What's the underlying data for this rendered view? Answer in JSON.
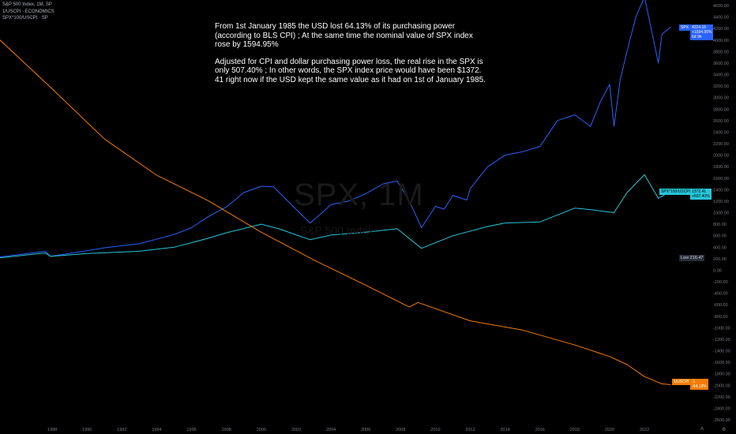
{
  "legend": {
    "line1": "S&P 500 Index, 1M, SP",
    "line2": "1/USCPI · ECONOMICS",
    "line3": "SPX*100/USCPI · SP"
  },
  "annotation": {
    "p1": "From 1st January 1985 the USD lost 64.13% of its purchasing power (according to BLS CPI) ; At the same time the nominal value of SPX index rose by 1594.95%",
    "p2": "Adjusted for CPI and dollar purchasing power loss, the real rise in the SPX is only 507.40% ; In other words, the SPX index price would have been $1372. 41 right now if the USD kept the same value as it had on 1st of January 1985."
  },
  "watermark": {
    "symbol": "SPX, 1M",
    "name": "S&P 500 Index"
  },
  "tags": {
    "spx_name": "SPX",
    "spx_value": "4224.15",
    "spx_pct": "+1594.95%",
    "spx_time": "6d 9h",
    "real_name": "SPX*100/USCPI",
    "real_value": "1372.41",
    "real_pct": "+507.40%",
    "low_label": "Low",
    "low_value": "216.47",
    "usd_name": "1/USCPI",
    "usd_value": "-1",
    "usd_pct": "-64.13%"
  },
  "corner": {
    "left": "A",
    "right": "⚙"
  },
  "colors": {
    "spx": "#2962ff",
    "real": "#26c6da",
    "usd": "#f57c00",
    "background": "#000000",
    "axis_text": "#787b86"
  },
  "chart_data": {
    "type": "line",
    "title": "",
    "xlabel": "",
    "ylabel": "",
    "x_ticks": [
      "1988",
      "1990",
      "1992",
      "1994",
      "1996",
      "1998",
      "2000",
      "2002",
      "2004",
      "2006",
      "2008",
      "2010",
      "2012",
      "2014",
      "2016",
      "2018",
      "2020",
      "2022"
    ],
    "ylim": [
      -2650,
      4650
    ],
    "y_ticks": [
      "4600.00",
      "4400.00",
      "4200.00",
      "4000.00",
      "3800.00",
      "3600.00",
      "3400.00",
      "3200.00",
      "3000.00",
      "2800.00",
      "2600.00",
      "2400.00",
      "2200.00",
      "2000.00",
      "1800.00",
      "1600.00",
      "1400.00",
      "1200.00",
      "1000.00",
      "800.00",
      "600.00",
      "400.00",
      "200.00",
      "0.00",
      "-200.00",
      "-400.00",
      "-600.00",
      "-800.00",
      "-1000.00",
      "-1200.00",
      "-1400.00",
      "-1600.00",
      "-1800.00",
      "-2000.00",
      "-2200.00",
      "-2400.00",
      "-2600.00"
    ],
    "grid": false,
    "series": [
      {
        "name": "SPX",
        "color": "#2962ff",
        "x": [
          1985,
          1987.6,
          1987.9,
          1990,
          1991,
          1993,
          1995,
          1996,
          1997,
          1998,
          1999,
          2000,
          2000.7,
          2001.7,
          2002.8,
          2003.5,
          2004,
          2005,
          2006,
          2007,
          2007.8,
          2008.5,
          2009.2,
          2010,
          2010.5,
          2011,
          2011.8,
          2012,
          2013,
          2014,
          2015,
          2016,
          2017,
          2018,
          2018.9,
          2019.5,
          2020,
          2020.25,
          2020.6,
          2021,
          2021.5,
          2022,
          2022.8,
          2023,
          2023.5
        ],
        "y": [
          230,
          330,
          240,
          340,
          390,
          460,
          620,
          740,
          940,
          1100,
          1350,
          1460,
          1450,
          1150,
          820,
          1000,
          1140,
          1200,
          1330,
          1500,
          1550,
          1200,
          740,
          1110,
          1060,
          1300,
          1220,
          1420,
          1800,
          2000,
          2060,
          2150,
          2600,
          2700,
          2500,
          2950,
          3230,
          2500,
          3300,
          3800,
          4400,
          4750,
          3600,
          4100,
          4224
        ]
      },
      {
        "name": "SPX*100/USCPI",
        "color": "#26c6da",
        "x": [
          1985,
          1987.6,
          1987.9,
          1990,
          1993,
          1995,
          1997,
          1998,
          2000,
          2001,
          2002.8,
          2004,
          2006,
          2007.8,
          2009.2,
          2011,
          2013,
          2014,
          2016,
          2018,
          2019,
          2020.25,
          2021,
          2022,
          2022.8,
          2023.5
        ],
        "y": [
          216,
          300,
          240,
          290,
          330,
          400,
          560,
          650,
          800,
          720,
          530,
          610,
          660,
          720,
          380,
          600,
          760,
          820,
          840,
          1080,
          1050,
          1000,
          1350,
          1660,
          1250,
          1372
        ]
      },
      {
        "name": "1/USCPI",
        "color": "#f57c00",
        "x": [
          1985,
          1988,
          1991,
          1994,
          1997,
          2000,
          2003,
          2006,
          2008.5,
          2009,
          2012,
          2015,
          2018,
          2020,
          2021,
          2022,
          2023,
          2023.5
        ],
        "y": [
          4000,
          3150,
          2280,
          1650,
          1200,
          660,
          180,
          -260,
          -640,
          -560,
          -880,
          -1040,
          -1300,
          -1500,
          -1640,
          -1850,
          -1975,
          -1990
        ]
      }
    ]
  }
}
